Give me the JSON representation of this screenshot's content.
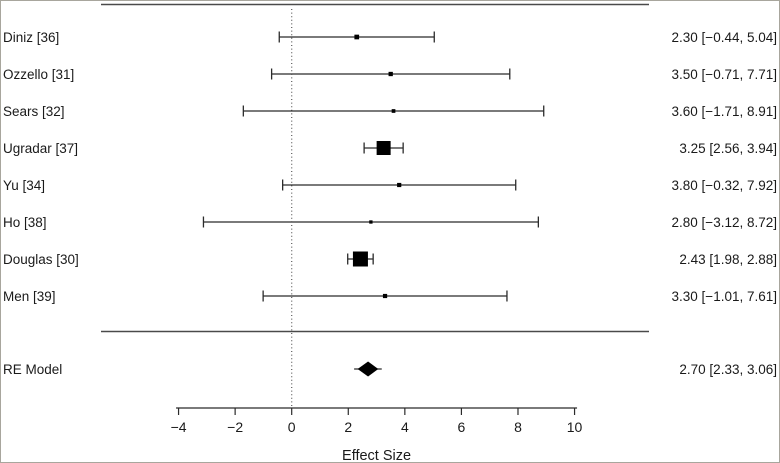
{
  "chart_data": {
    "type": "forest",
    "xlabel": "Effect Size",
    "x_ticks": [
      -4,
      -2,
      0,
      2,
      4,
      6,
      8,
      10
    ],
    "x_tick_labels": [
      "−4",
      "−2",
      "0",
      "2",
      "4",
      "6",
      "8",
      "10"
    ],
    "xlim": [
      -4,
      10
    ],
    "zero_reference_line": 0,
    "studies": [
      {
        "label": "Diniz [36]",
        "estimate": 2.3,
        "ci_low": -0.44,
        "ci_high": 5.04,
        "display": "2.30 [−0.44, 5.04]",
        "marker_size": 4.7
      },
      {
        "label": "Ozzello [31]",
        "estimate": 3.5,
        "ci_low": -0.71,
        "ci_high": 7.71,
        "display": "3.50 [−0.71, 7.71]",
        "marker_size": 4.3
      },
      {
        "label": "Sears [32]",
        "estimate": 3.6,
        "ci_low": -1.71,
        "ci_high": 8.91,
        "display": "3.60 [−1.71, 8.91]",
        "marker_size": 3.7
      },
      {
        "label": "Ugradar [37]",
        "estimate": 3.25,
        "ci_low": 2.56,
        "ci_high": 3.94,
        "display": "3.25 [2.56, 3.94]",
        "marker_size": 14
      },
      {
        "label": "Yu [34]",
        "estimate": 3.8,
        "ci_low": -0.32,
        "ci_high": 7.92,
        "display": "3.80 [−0.32, 7.92]",
        "marker_size": 4.2
      },
      {
        "label": "Ho [38]",
        "estimate": 2.8,
        "ci_low": -3.12,
        "ci_high": 8.72,
        "display": "2.80 [−3.12, 8.72]",
        "marker_size": 3.3
      },
      {
        "label": "Douglas [30]",
        "estimate": 2.43,
        "ci_low": 1.98,
        "ci_high": 2.88,
        "display": "2.43 [1.98, 2.88]",
        "marker_size": 15
      },
      {
        "label": "Men [39]",
        "estimate": 3.3,
        "ci_low": -1.01,
        "ci_high": 7.61,
        "display": "3.30 [−1.01, 7.61]",
        "marker_size": 4.2
      }
    ],
    "summary": {
      "label": "RE Model",
      "estimate": 2.7,
      "ci_low": 2.33,
      "ci_high": 3.06,
      "display": "2.70 [2.33, 3.06]"
    }
  },
  "colors": {
    "line": "#2b2b2b",
    "rule": "#4a4a4a",
    "marker": "#000000",
    "text": "#1a1a1a",
    "dotted": "#5a5a5a",
    "frame": "#a8a69d",
    "background": "#ffffff"
  }
}
